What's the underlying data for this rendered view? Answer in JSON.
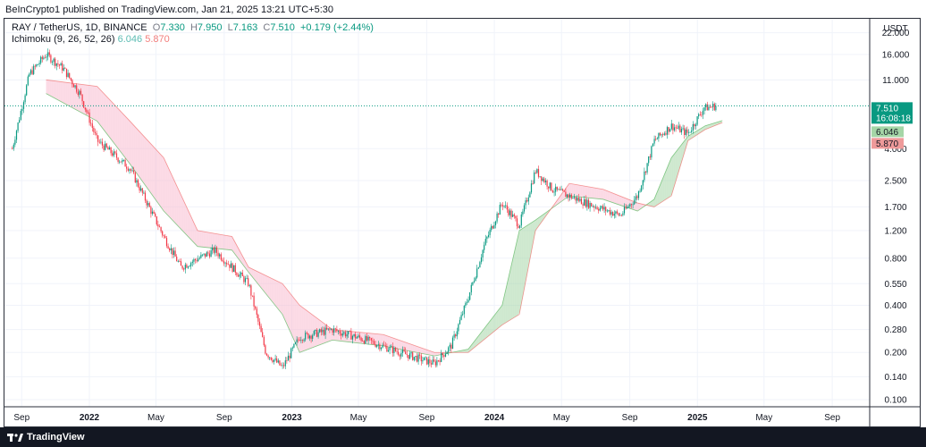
{
  "header": {
    "publisher_line": "BeInCrypto1 published on TradingView.com, Jan 21, 2025 13:21 UTC+5:30"
  },
  "footer": {
    "brand": "TradingView"
  },
  "legend": {
    "symbol": "RAY / TetherUS, 1D, BINANCE",
    "o_label": "O",
    "o_value": "7.330",
    "h_label": "H",
    "h_value": "7.950",
    "l_label": "L",
    "l_value": "7.163",
    "c_label": "C",
    "c_value": "7.510",
    "change": "+0.179 (+2.44%)",
    "indicator": "Ichimoku (9, 26, 52, 26)",
    "ind_val1": "6.046",
    "ind_val2": "5.870"
  },
  "price_axis": {
    "currency": "USDT",
    "last_price": "7.510",
    "countdown": "16:08:18",
    "tag_green": "6.046",
    "tag_red": "5.870"
  },
  "colors": {
    "up": "#089981",
    "down": "#f23645",
    "cloud_bull": "#a5d6a7",
    "cloud_bear": "#f8bbd0",
    "tag_green": "#a5d6a7",
    "tag_red": "#ef9a9a"
  },
  "chart_data": {
    "type": "candlestick",
    "title": "RAY / TetherUS, 1D, BINANCE",
    "y_scale": "log",
    "ylim": [
      0.09,
      27
    ],
    "y_ticks": [
      "22.000",
      "16.000",
      "11.000",
      "4.000",
      "2.500",
      "1.700",
      "1.200",
      "0.800",
      "0.550",
      "0.400",
      "0.280",
      "0.200",
      "0.140",
      "0.100"
    ],
    "x_ticks": [
      "Sep",
      "2022",
      "May",
      "Sep",
      "2023",
      "May",
      "Sep",
      "2024",
      "May",
      "Sep",
      "2025",
      "May",
      "Sep"
    ],
    "grid": true,
    "price_path": [
      {
        "date": "2021-08",
        "price": 4.0
      },
      {
        "date": "2021-09",
        "price": 12.0
      },
      {
        "date": "2021-10",
        "price": 16.0
      },
      {
        "date": "2021-11",
        "price": 13.0
      },
      {
        "date": "2021-12",
        "price": 9.0
      },
      {
        "date": "2022-01",
        "price": 4.5
      },
      {
        "date": "2022-03",
        "price": 3.0
      },
      {
        "date": "2022-05",
        "price": 1.1
      },
      {
        "date": "2022-06",
        "price": 0.7
      },
      {
        "date": "2022-08",
        "price": 0.9
      },
      {
        "date": "2022-10",
        "price": 0.55
      },
      {
        "date": "2022-11",
        "price": 0.2
      },
      {
        "date": "2022-12",
        "price": 0.16
      },
      {
        "date": "2023-01",
        "price": 0.25
      },
      {
        "date": "2023-03",
        "price": 0.28
      },
      {
        "date": "2023-05",
        "price": 0.24
      },
      {
        "date": "2023-07",
        "price": 0.2
      },
      {
        "date": "2023-09",
        "price": 0.17
      },
      {
        "date": "2023-10",
        "price": 0.22
      },
      {
        "date": "2023-11",
        "price": 0.45
      },
      {
        "date": "2023-12",
        "price": 1.0
      },
      {
        "date": "2024-01",
        "price": 1.8
      },
      {
        "date": "2024-02",
        "price": 1.3
      },
      {
        "date": "2024-03",
        "price": 2.9
      },
      {
        "date": "2024-04",
        "price": 2.2
      },
      {
        "date": "2024-06",
        "price": 1.8
      },
      {
        "date": "2024-08",
        "price": 1.5
      },
      {
        "date": "2024-09",
        "price": 2.0
      },
      {
        "date": "2024-10",
        "price": 4.5
      },
      {
        "date": "2024-11",
        "price": 5.6
      },
      {
        "date": "2024-12",
        "price": 5.0
      },
      {
        "date": "2025-01",
        "price": 7.51
      }
    ],
    "cloud_path": [
      {
        "date": "2021-10",
        "a": 9.0,
        "b": 11.0
      },
      {
        "date": "2022-01",
        "a": 6.0,
        "b": 10.0
      },
      {
        "date": "2022-03",
        "a": 3.2,
        "b": 6.0
      },
      {
        "date": "2022-05",
        "a": 1.6,
        "b": 3.5
      },
      {
        "date": "2022-07",
        "a": 0.95,
        "b": 1.2
      },
      {
        "date": "2022-09",
        "a": 0.9,
        "b": 1.1
      },
      {
        "date": "2022-10",
        "a": 0.65,
        "b": 0.7
      },
      {
        "date": "2022-12",
        "a": 0.35,
        "b": 0.55
      },
      {
        "date": "2023-01",
        "a": 0.2,
        "b": 0.4
      },
      {
        "date": "2023-03",
        "a": 0.24,
        "b": 0.28
      },
      {
        "date": "2023-06",
        "a": 0.22,
        "b": 0.26
      },
      {
        "date": "2023-09",
        "a": 0.19,
        "b": 0.2
      },
      {
        "date": "2023-11",
        "a": 0.21,
        "b": 0.2
      },
      {
        "date": "2024-01",
        "a": 0.4,
        "b": 0.3
      },
      {
        "date": "2024-02",
        "a": 1.2,
        "b": 0.35
      },
      {
        "date": "2024-03",
        "a": 1.4,
        "b": 1.2
      },
      {
        "date": "2024-05",
        "a": 2.0,
        "b": 2.4
      },
      {
        "date": "2024-07",
        "a": 1.9,
        "b": 2.2
      },
      {
        "date": "2024-09",
        "a": 1.6,
        "b": 1.8
      },
      {
        "date": "2024-10",
        "a": 1.9,
        "b": 1.7
      },
      {
        "date": "2024-11",
        "a": 3.5,
        "b": 2.0
      },
      {
        "date": "2024-12",
        "a": 4.8,
        "b": 4.5
      },
      {
        "date": "2025-01",
        "a": 5.6,
        "b": 5.3
      },
      {
        "date": "2025-02",
        "a": 6.046,
        "b": 5.87
      }
    ],
    "last_close": 7.51
  }
}
